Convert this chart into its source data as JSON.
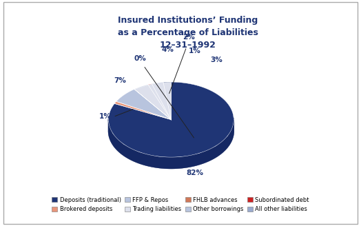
{
  "title": "Insured Institutions’ Funding\nas a Percentage of Liabilities\n12–31–1992",
  "slices": [
    82,
    1,
    7,
    0,
    4,
    1,
    3,
    2
  ],
  "slice_order_labels": [
    "Deposits (traditional)",
    "Brokered deposits",
    "FFP & Repos",
    "Trading liabilities",
    "Other borrowings",
    "Subordinated debt",
    "All other liabilities",
    "FHLB advances"
  ],
  "colors_top": [
    "#1f3575",
    "#e8957a",
    "#b8c4de",
    "#dde0ec",
    "#b8c4de",
    "#cc2222",
    "#9aaace",
    "#1f3575"
  ],
  "colors_side": [
    "#152863",
    "#d07858",
    "#8898ba",
    "#b8bdd0",
    "#8898ba",
    "#aa1111",
    "#7888aa",
    "#152863"
  ],
  "pct_labels": [
    "82%",
    "1%",
    "7%",
    "0%",
    "4%",
    "1%",
    "3%",
    "2%"
  ],
  "legend_order": [
    "Deposits (traditional)",
    "Brokered deposits",
    "FFP & Repos",
    "Trading liabilities",
    "FHLB advances",
    "Other borrowings",
    "Subordinated debt",
    "All other liabilities"
  ],
  "legend_colors": [
    "#1f3575",
    "#e8957a",
    "#b8c4de",
    "#dde0ec",
    "#d07858",
    "#b8c4de",
    "#cc2222",
    "#9aaace"
  ],
  "background_color": "#ffffff",
  "title_color": "#1f3575",
  "title_fontsize": 9.0,
  "label_fontsize": 7.5,
  "pct_color": "#1f3575"
}
